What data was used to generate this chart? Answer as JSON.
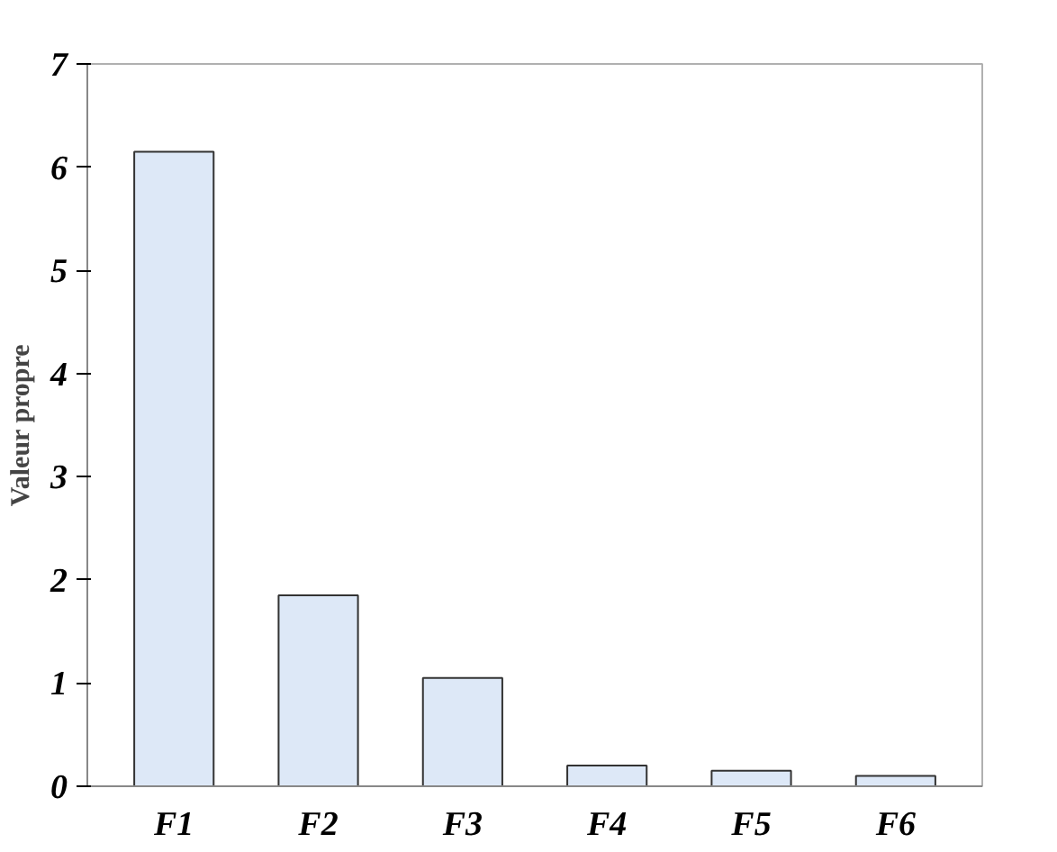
{
  "chart_data": {
    "type": "bar",
    "ylabel": "Valeur propre",
    "categories": [
      "F1",
      "F2",
      "F3",
      "F4",
      "F5",
      "F6"
    ],
    "values": [
      6.15,
      1.85,
      1.05,
      0.2,
      0.15,
      0.1
    ],
    "color": "#dde8f7",
    "ylim": [
      0,
      7
    ],
    "yticks": [
      0,
      1,
      2,
      3,
      4,
      5,
      6,
      7
    ],
    "grid": false
  }
}
